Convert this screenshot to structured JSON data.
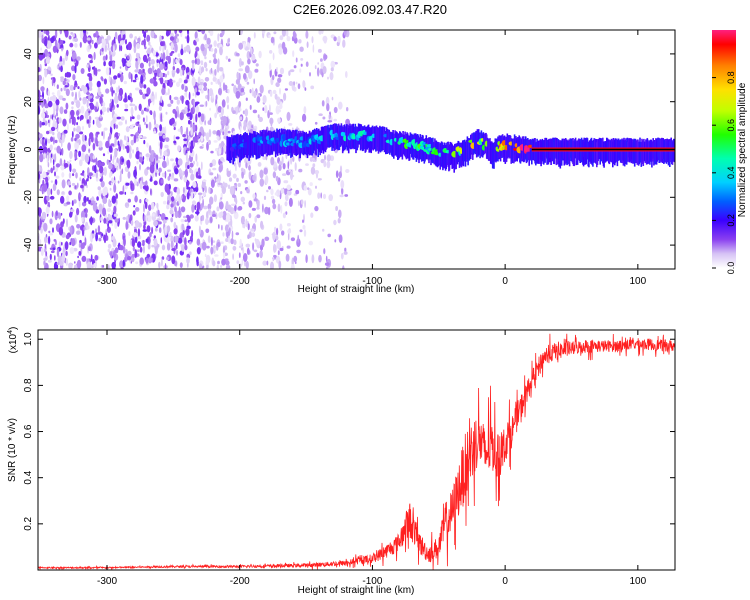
{
  "title": "C2E6.2026.092.03.47.R20",
  "chart_data": [
    {
      "type": "heatmap",
      "title": "C2E6.2026.092.03.47.R20",
      "xlabel": "Height of straight line (km)",
      "ylabel": "Frequency (Hz)",
      "xlim": [
        -352,
        128
      ],
      "ylim": [
        -50,
        50
      ],
      "xticks": [
        -300,
        -200,
        -100,
        0,
        100
      ],
      "yticks": [
        -40,
        -20,
        0,
        20,
        40
      ],
      "colorbar": {
        "label": "Normalized spectral amplitude",
        "range": [
          0,
          1
        ],
        "ticks": [
          0.0,
          0.2,
          0.4,
          0.6,
          0.8
        ],
        "colors": [
          "#ffffff",
          "#d6c2f5",
          "#8a40f0",
          "#3a00ff",
          "#0060ff",
          "#00d0ff",
          "#00ffb0",
          "#20ff00",
          "#c0ff00",
          "#ffe000",
          "#ff8000",
          "#ff0000",
          "#ff2080"
        ]
      },
      "signal_track": {
        "x": [
          -210,
          -190,
          -170,
          -150,
          -130,
          -110,
          -95,
          -80,
          -70,
          -60,
          -50,
          -40,
          -30,
          -22,
          -15,
          -10,
          -5,
          0,
          10,
          20,
          128
        ],
        "frequency": [
          1,
          3,
          4,
          3,
          6,
          6,
          5,
          3,
          2,
          1,
          -1,
          -2,
          0,
          4,
          2,
          -1,
          1,
          2,
          1,
          0,
          0
        ],
        "amplitude": [
          0.3,
          0.35,
          0.4,
          0.4,
          0.45,
          0.5,
          0.45,
          0.5,
          0.6,
          0.55,
          0.55,
          0.6,
          0.65,
          0.75,
          0.7,
          0.75,
          0.8,
          0.85,
          0.95,
          1.0,
          1.0
        ]
      },
      "noise_region": {
        "x": [
          -352,
          -118
        ],
        "density": "high below -230 km, sparse to -118 km"
      }
    },
    {
      "type": "line",
      "xlabel": "Height of straight line (km)",
      "ylabel": "SNR (10 * v/v)",
      "y_scale_label": "(x10",
      "y_scale_exponent": "4",
      "y_scale_close": ")",
      "xlim": [
        -352,
        128
      ],
      "ylim": [
        0,
        1.04
      ],
      "xticks": [
        -300,
        -200,
        -100,
        0,
        100
      ],
      "yticks": [
        0.2,
        0.4,
        0.6,
        0.8,
        1.0
      ],
      "series": [
        {
          "name": "SNR",
          "color": "#ff2020",
          "x": [
            -352,
            -300,
            -250,
            -200,
            -150,
            -120,
            -100,
            -90,
            -80,
            -72,
            -65,
            -58,
            -50,
            -45,
            -40,
            -35,
            -30,
            -25,
            -20,
            -15,
            -10,
            -5,
            0,
            5,
            10,
            15,
            20,
            25,
            30,
            40,
            50,
            60,
            80,
            100,
            128
          ],
          "y": [
            0.01,
            0.01,
            0.015,
            0.015,
            0.02,
            0.03,
            0.05,
            0.08,
            0.12,
            0.22,
            0.12,
            0.07,
            0.1,
            0.2,
            0.25,
            0.35,
            0.45,
            0.52,
            0.58,
            0.5,
            0.55,
            0.48,
            0.55,
            0.6,
            0.68,
            0.75,
            0.82,
            0.88,
            0.93,
            0.95,
            0.96,
            0.97,
            0.97,
            0.98,
            0.97
          ],
          "noise": [
            0.003,
            0.003,
            0.004,
            0.005,
            0.008,
            0.012,
            0.02,
            0.03,
            0.04,
            0.08,
            0.05,
            0.04,
            0.05,
            0.09,
            0.1,
            0.12,
            0.14,
            0.14,
            0.12,
            0.12,
            0.12,
            0.1,
            0.08,
            0.07,
            0.06,
            0.05,
            0.04,
            0.04,
            0.04,
            0.04,
            0.03,
            0.03,
            0.025,
            0.025,
            0.025
          ]
        }
      ]
    }
  ]
}
